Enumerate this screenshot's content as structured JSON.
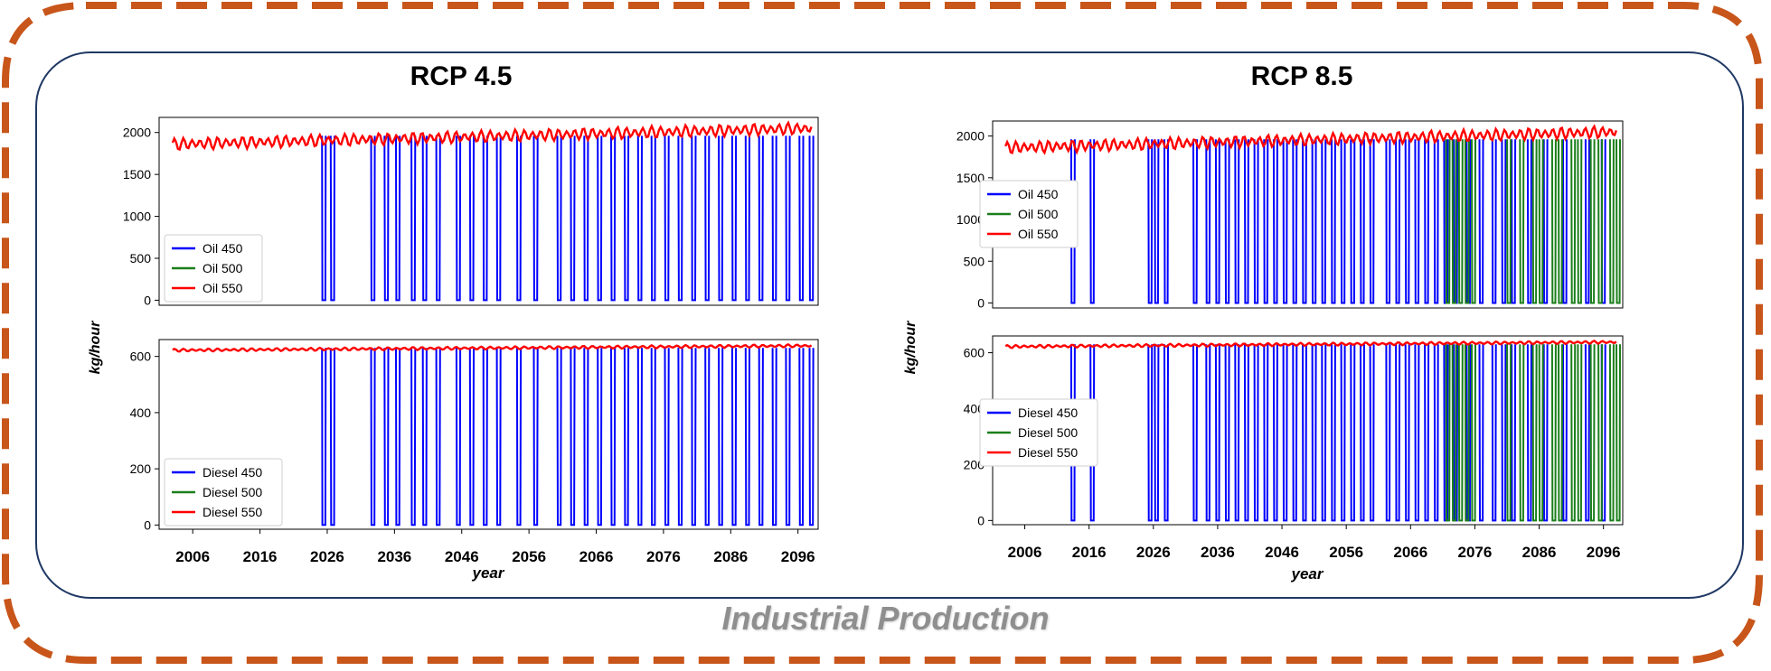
{
  "caption": "Industrial Production",
  "colors": {
    "frame_dash": "#c8551a",
    "panel_border": "#1f3864",
    "s450": "#0000ff",
    "s500": "#1a7f1a",
    "s550": "#ff0000"
  },
  "chart_data": [
    {
      "type": "line",
      "title": "RCP 4.5",
      "xlabel": "year",
      "ylabel": "kg/hour",
      "x_ticks": [
        "2006",
        "2016",
        "2026",
        "2036",
        "2046",
        "2056",
        "2066",
        "2076",
        "2086",
        "2096"
      ],
      "xlim": [
        2001,
        2099
      ],
      "subplots": [
        {
          "name": "oil",
          "ylim": [
            -60,
            2180
          ],
          "y_ticks": [
            0,
            500,
            1000,
            1500,
            2000
          ],
          "legend_position": "lower-left",
          "series": [
            {
              "name": "Oil 450",
              "color": "#0000ff",
              "baseline": 1960,
              "drop_to": 0,
              "drop_years": [
                2025.5,
                2026.8,
                2032.8,
                2034.8,
                2036.5,
                2038.8,
                2040.5,
                2042.5,
                2045.5,
                2047.5,
                2049.5,
                2051.5,
                2054.5,
                2057,
                2060.5,
                2062.5,
                2064.5,
                2066.5,
                2068.5,
                2070.5,
                2072.5,
                2074.5,
                2076.5,
                2078.5,
                2080.5,
                2082.5,
                2084.5,
                2086.5,
                2088.5,
                2090.5,
                2092.5,
                2094.5,
                2096.5,
                2098
              ]
            },
            {
              "name": "Oil 500",
              "color": "#1a7f1a",
              "baseline": 1960,
              "drop_to": 0,
              "drop_years": []
            },
            {
              "name": "Oil 550",
              "color": "#ff0000",
              "start": 1860,
              "end": 2050,
              "amplitude": 55,
              "cycles": 75
            }
          ]
        },
        {
          "name": "diesel",
          "ylim": [
            -15,
            660
          ],
          "y_ticks": [
            0,
            200,
            400,
            600
          ],
          "legend_position": "lower-left",
          "series": [
            {
              "name": "Diesel 450",
              "color": "#0000ff",
              "baseline": 630,
              "drop_to": 0,
              "drop_years": [
                2025.5,
                2026.8,
                2032.8,
                2034.8,
                2036.5,
                2038.8,
                2040.5,
                2042.5,
                2045.5,
                2047.5,
                2049.5,
                2051.5,
                2054.5,
                2057,
                2060.5,
                2062.5,
                2064.5,
                2066.5,
                2068.5,
                2070.5,
                2072.5,
                2074.5,
                2076.5,
                2078.5,
                2080.5,
                2082.5,
                2084.5,
                2086.5,
                2088.5,
                2090.5,
                2092.5,
                2094.5,
                2096.5,
                2098
              ]
            },
            {
              "name": "Diesel 500",
              "color": "#1a7f1a",
              "baseline": 630,
              "drop_to": 0,
              "drop_years": []
            },
            {
              "name": "Diesel 550",
              "color": "#ff0000",
              "start": 622,
              "end": 638,
              "amplitude": 4,
              "cycles": 75
            }
          ]
        }
      ]
    },
    {
      "type": "line",
      "title": "RCP 8.5",
      "xlabel": "year",
      "ylabel": "kg/hour",
      "x_ticks": [
        "2006",
        "2016",
        "2026",
        "2036",
        "2046",
        "2056",
        "2066",
        "2076",
        "2086",
        "2096"
      ],
      "xlim": [
        2001,
        2099
      ],
      "subplots": [
        {
          "name": "oil",
          "ylim": [
            -60,
            2180
          ],
          "y_ticks": [
            0,
            500,
            1000,
            1500,
            2000
          ],
          "legend_position": "upper-left",
          "series": [
            {
              "name": "Oil 450",
              "color": "#0000ff",
              "baseline": 1960,
              "drop_to": 0,
              "drop_years": [
                2013.5,
                2016.5,
                2025.5,
                2026.5,
                2028,
                2032.5,
                2034.5,
                2036,
                2037.5,
                2039,
                2040.5,
                2042,
                2043.5,
                2045,
                2046.5,
                2048,
                2049.5,
                2051,
                2052.5,
                2054,
                2055.5,
                2057,
                2058.5,
                2060,
                2062.5,
                2064,
                2065.5,
                2067,
                2068.5,
                2070,
                2071.5,
                2073,
                2075,
                2077,
                2079,
                2080.5,
                2082,
                2084.5,
                2087,
                2090,
                2093.5,
                2096
              ]
            },
            {
              "name": "Oil 500",
              "color": "#1a7f1a",
              "baseline": 1960,
              "drop_to": 0,
              "drop_years": [
                2071.8,
                2072.8,
                2073.8,
                2074.8,
                2075.8,
                2081.3,
                2083.3,
                2085.3,
                2086.3,
                2088.3,
                2089.3,
                2091.3,
                2092.3,
                2094.3,
                2095.5,
                2097.3,
                2098.3
              ]
            },
            {
              "name": "Oil 550",
              "color": "#ff0000",
              "start": 1860,
              "end": 2050,
              "amplitude": 55,
              "cycles": 75
            }
          ]
        },
        {
          "name": "diesel",
          "ylim": [
            -15,
            660
          ],
          "y_ticks": [
            0,
            200,
            400,
            600
          ],
          "legend_position": "center-left",
          "series": [
            {
              "name": "Diesel 450",
              "color": "#0000ff",
              "baseline": 630,
              "drop_to": 0,
              "drop_years": [
                2013.5,
                2016.5,
                2025.5,
                2026.5,
                2028,
                2032.5,
                2034.5,
                2036,
                2037.5,
                2039,
                2040.5,
                2042,
                2043.5,
                2045,
                2046.5,
                2048,
                2049.5,
                2051,
                2052.5,
                2054,
                2055.5,
                2057,
                2058.5,
                2060,
                2062.5,
                2064,
                2065.5,
                2067,
                2068.5,
                2070,
                2071.5,
                2073,
                2075,
                2077,
                2079,
                2080.5,
                2082,
                2084.5,
                2087,
                2090,
                2093.5,
                2096
              ]
            },
            {
              "name": "Diesel 500",
              "color": "#1a7f1a",
              "baseline": 630,
              "drop_to": 0,
              "drop_years": [
                2071.8,
                2072.8,
                2073.8,
                2074.8,
                2075.8,
                2081.3,
                2083.3,
                2085.3,
                2086.3,
                2088.3,
                2089.3,
                2091.3,
                2092.3,
                2094.3,
                2095.5,
                2097.3,
                2098.3
              ]
            },
            {
              "name": "Diesel 550",
              "color": "#ff0000",
              "start": 622,
              "end": 638,
              "amplitude": 4,
              "cycles": 75
            }
          ]
        }
      ]
    }
  ]
}
